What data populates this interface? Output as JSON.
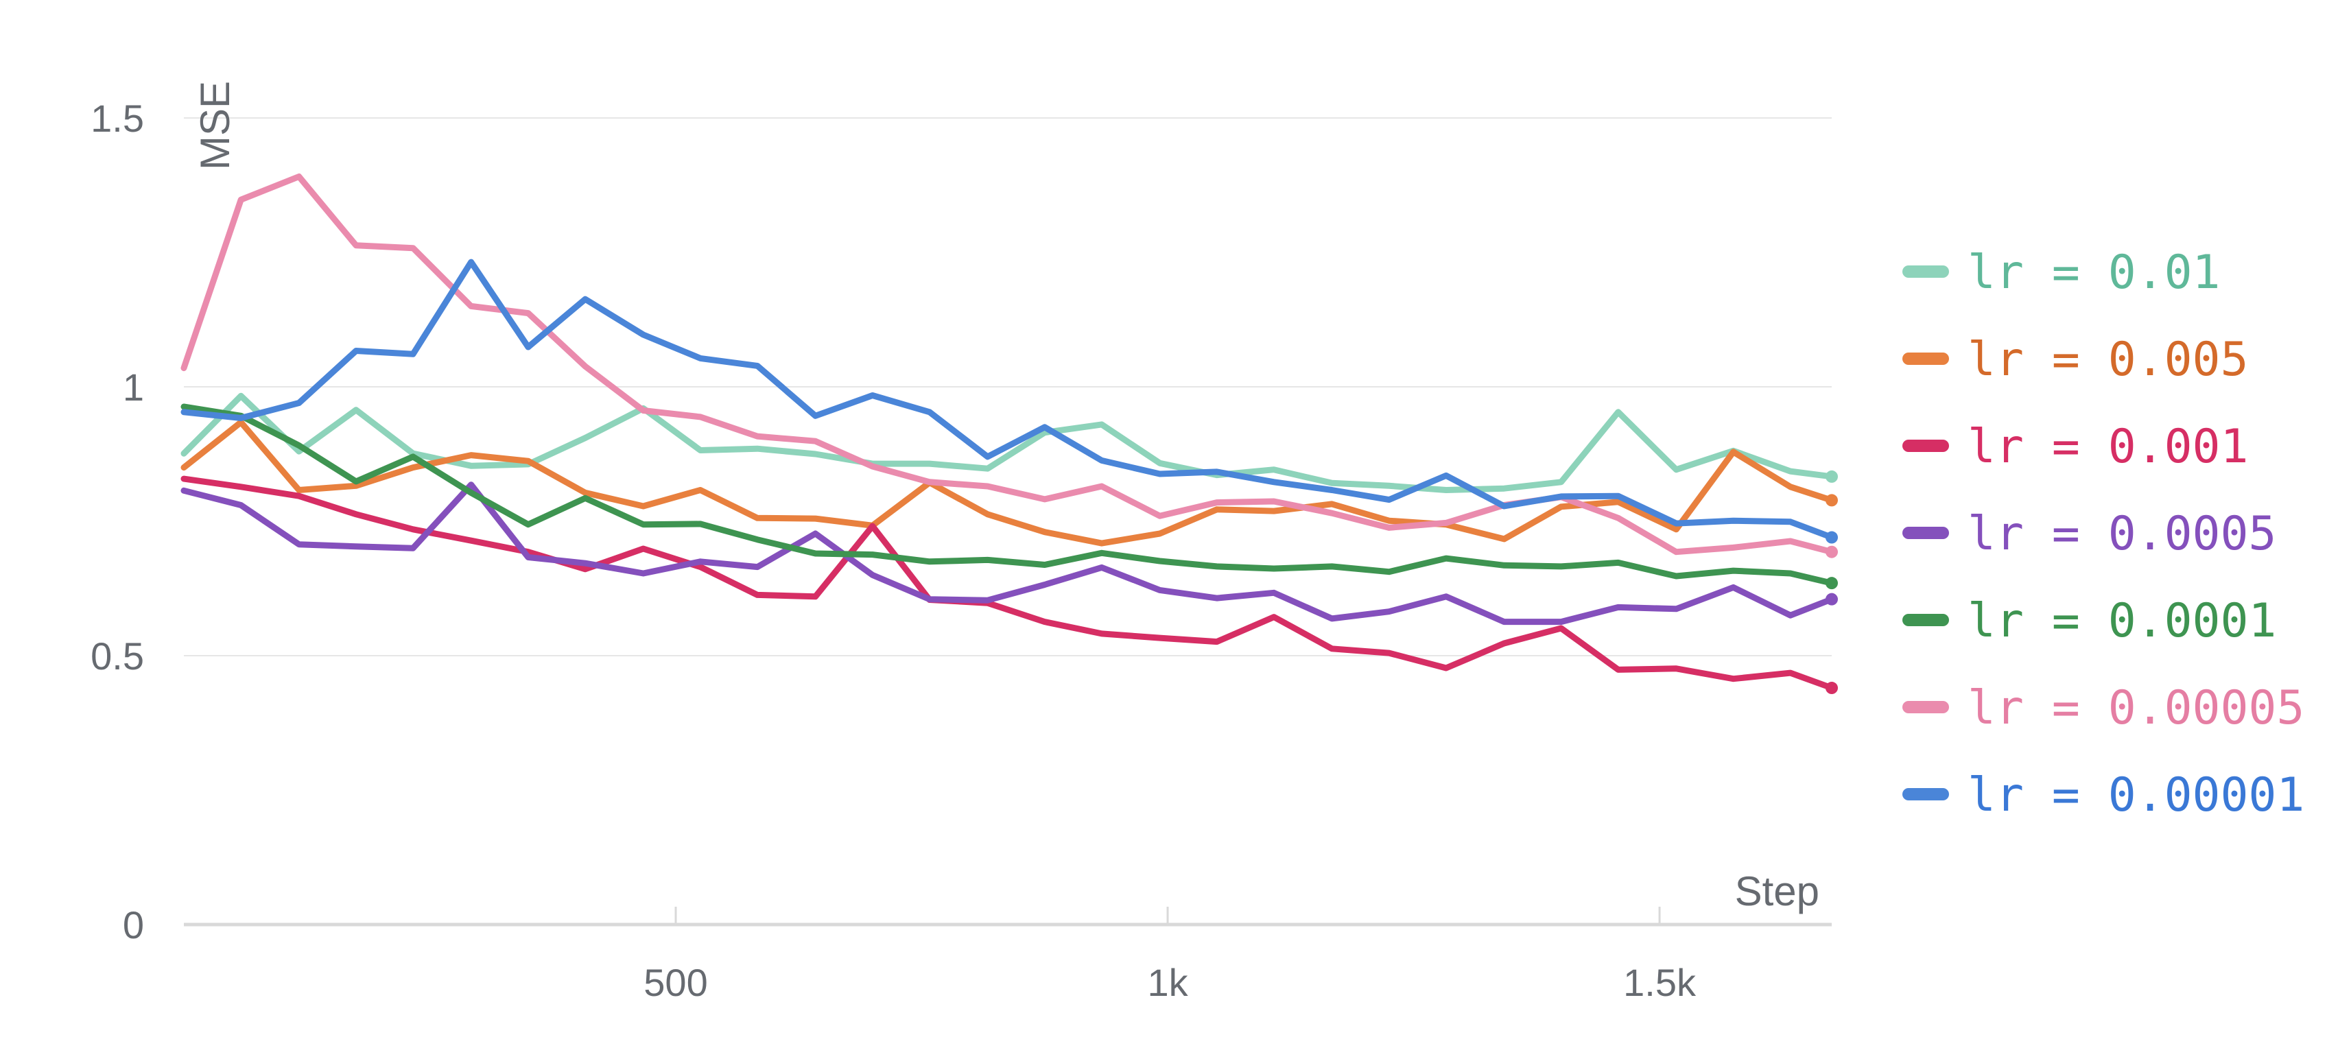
{
  "chart_data": {
    "type": "line",
    "xlabel": "Step",
    "ylabel": "MSE",
    "xlim": [
      0,
      1675
    ],
    "ylim": [
      0,
      1.5
    ],
    "grid": true,
    "legend_position": "right",
    "x_ticks": [
      {
        "value": 500,
        "label": "500"
      },
      {
        "value": 1000,
        "label": "1k"
      },
      {
        "value": 1500,
        "label": "1.5k"
      }
    ],
    "y_ticks": [
      {
        "value": 0,
        "label": "0"
      },
      {
        "value": 0.5,
        "label": "0.5"
      },
      {
        "value": 1,
        "label": "1"
      },
      {
        "value": 1.5,
        "label": "1.5"
      }
    ],
    "x": [
      0,
      58,
      117,
      175,
      233,
      292,
      350,
      408,
      467,
      525,
      583,
      642,
      700,
      758,
      817,
      875,
      933,
      992,
      1050,
      1108,
      1167,
      1225,
      1283,
      1342,
      1400,
      1458,
      1517,
      1575,
      1633,
      1675
    ],
    "series": [
      {
        "name": "lr = 0.01",
        "color": "#8dd3ba",
        "text_color": "#5fb899",
        "values": [
          0.876,
          0.983,
          0.88,
          0.957,
          0.876,
          0.853,
          0.856,
          0.905,
          0.96,
          0.882,
          0.885,
          0.875,
          0.857,
          0.857,
          0.848,
          0.915,
          0.93,
          0.858,
          0.836,
          0.846,
          0.821,
          0.816,
          0.808,
          0.811,
          0.823,
          0.953,
          0.846,
          0.881,
          0.843,
          0.833
        ]
      },
      {
        "name": "lr = 0.005",
        "color": "#e8803e",
        "text_color": "#d46a2a",
        "values": [
          0.85,
          0.934,
          0.808,
          0.816,
          0.85,
          0.873,
          0.862,
          0.803,
          0.778,
          0.808,
          0.756,
          0.755,
          0.742,
          0.822,
          0.763,
          0.73,
          0.709,
          0.727,
          0.772,
          0.769,
          0.782,
          0.751,
          0.744,
          0.717,
          0.777,
          0.786,
          0.735,
          0.879,
          0.814,
          0.789
        ]
      },
      {
        "name": "lr = 0.001",
        "color": "#d62e64",
        "text_color": "#d62e64",
        "values": [
          0.829,
          0.814,
          0.797,
          0.763,
          0.735,
          0.714,
          0.693,
          0.661,
          0.699,
          0.665,
          0.613,
          0.61,
          0.741,
          0.604,
          0.598,
          0.563,
          0.541,
          0.533,
          0.526,
          0.572,
          0.513,
          0.505,
          0.477,
          0.523,
          0.551,
          0.474,
          0.476,
          0.457,
          0.468,
          0.44
        ]
      },
      {
        "name": "lr = 0.0005",
        "color": "#8450bc",
        "text_color": "#8450bc",
        "values": [
          0.807,
          0.78,
          0.707,
          0.703,
          0.7,
          0.818,
          0.683,
          0.672,
          0.653,
          0.675,
          0.665,
          0.727,
          0.65,
          0.605,
          0.603,
          0.632,
          0.664,
          0.622,
          0.607,
          0.617,
          0.569,
          0.582,
          0.61,
          0.563,
          0.563,
          0.59,
          0.587,
          0.627,
          0.575,
          0.605
        ]
      },
      {
        "name": "lr = 0.0001",
        "color": "#3e9451",
        "text_color": "#3e9451",
        "values": [
          0.963,
          0.946,
          0.891,
          0.824,
          0.87,
          0.803,
          0.744,
          0.793,
          0.744,
          0.745,
          0.716,
          0.69,
          0.688,
          0.675,
          0.678,
          0.669,
          0.691,
          0.676,
          0.666,
          0.662,
          0.666,
          0.656,
          0.681,
          0.668,
          0.666,
          0.673,
          0.648,
          0.658,
          0.653,
          0.635
        ]
      },
      {
        "name": "lr = 0.00005",
        "color": "#ea8bad",
        "text_color": "#e57ea3",
        "values": [
          1.035,
          1.348,
          1.391,
          1.263,
          1.258,
          1.15,
          1.137,
          1.038,
          0.956,
          0.944,
          0.908,
          0.899,
          0.852,
          0.823,
          0.815,
          0.791,
          0.815,
          0.76,
          0.785,
          0.787,
          0.765,
          0.738,
          0.747,
          0.78,
          0.795,
          0.756,
          0.693,
          0.701,
          0.713,
          0.693
        ]
      },
      {
        "name": "lr = 0.00001",
        "color": "#4a85d8",
        "text_color": "#3a78d6",
        "values": [
          0.953,
          0.942,
          0.97,
          1.067,
          1.061,
          1.232,
          1.074,
          1.163,
          1.097,
          1.053,
          1.039,
          0.946,
          0.984,
          0.953,
          0.87,
          0.925,
          0.863,
          0.838,
          0.842,
          0.823,
          0.808,
          0.79,
          0.835,
          0.778,
          0.796,
          0.797,
          0.746,
          0.751,
          0.749,
          0.72
        ]
      }
    ]
  }
}
